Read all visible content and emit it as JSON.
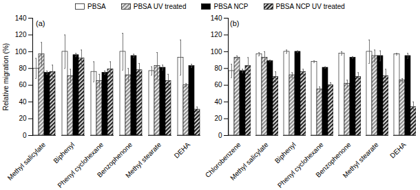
{
  "chart_data": [
    {
      "type": "bar",
      "title": "(a)",
      "y_label": "Relative migration (%)",
      "legend": "top",
      "categories": [
        "Methyl salicylate",
        "Biphenyl",
        "Phenyl cyclohexane",
        "Benzophenone",
        "Methyl stearate",
        "DEHA"
      ],
      "ylim": [
        0,
        140
      ],
      "yticks": [
        0,
        20,
        40,
        60,
        80,
        100,
        120,
        140
      ],
      "grid": false,
      "series": [
        {
          "name": "PBSA",
          "color": "#ffffff",
          "line_style": "solid",
          "values": [
            80,
            100,
            76,
            100,
            77,
            93
          ],
          "errors": [
            12,
            20,
            12,
            22,
            5,
            21
          ]
        },
        {
          "name": "PBSA UV treated",
          "color": "#8c8c8c",
          "line_style": "hatched",
          "values": [
            97,
            71,
            65,
            72,
            83,
            60
          ],
          "errors": [
            14,
            8,
            8,
            8,
            16,
            2
          ]
        },
        {
          "name": "PBSA NCP",
          "color": "#000000",
          "line_style": "solid",
          "values": [
            75,
            96,
            75,
            95,
            81,
            83
          ],
          "errors": [
            2,
            2,
            2,
            2,
            3,
            2
          ]
        },
        {
          "name": "PBSA NCP UV treated",
          "color": "#222222",
          "line_style": "hatched",
          "values": [
            76,
            92,
            79,
            78,
            65,
            31
          ],
          "errors": [
            8,
            10,
            9,
            8,
            8,
            3
          ]
        }
      ]
    },
    {
      "type": "bar",
      "title": "(b)",
      "categories": [
        "Chlorobenzene",
        "Methyl salicylate",
        "Biphenyl",
        "Phenyl cyclohexane",
        "Benzophenone",
        "Methyl stearate",
        "DEHA"
      ],
      "ylim": [
        0,
        140
      ],
      "yticks": [
        0,
        20,
        40,
        60,
        80,
        100,
        120,
        140
      ],
      "grid": false,
      "series": [
        {
          "name": "PBSA",
          "color": "#ffffff",
          "line_style": "solid",
          "values": [
            77,
            97,
            100,
            88,
            98,
            100,
            97
          ],
          "errors": [
            8,
            2,
            2,
            1,
            2,
            14,
            1
          ]
        },
        {
          "name": "PBSA UV treated",
          "color": "#8c8c8c",
          "line_style": "hatched",
          "values": [
            93,
            93,
            72,
            55,
            62,
            95,
            66
          ],
          "errors": [
            2,
            7,
            3,
            3,
            4,
            7,
            2
          ]
        },
        {
          "name": "PBSA NCP",
          "color": "#000000",
          "line_style": "solid",
          "values": [
            77,
            89,
            100,
            81,
            93,
            95,
            95
          ],
          "errors": [
            2,
            1,
            1,
            1,
            1,
            6,
            3
          ]
        },
        {
          "name": "PBSA NCP UV treated",
          "color": "#222222",
          "line_style": "hatched",
          "values": [
            83,
            70,
            76,
            60,
            70,
            71,
            34
          ],
          "errors": [
            10,
            6,
            3,
            3,
            5,
            8,
            6
          ]
        }
      ]
    }
  ]
}
